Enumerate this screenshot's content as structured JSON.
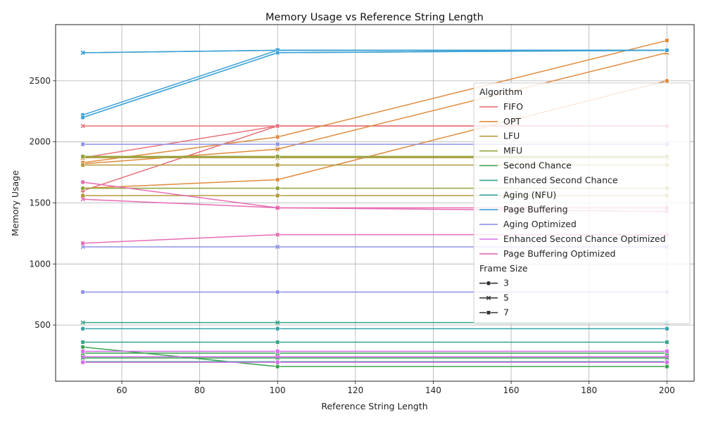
{
  "chart_data": {
    "type": "line",
    "title": "Memory Usage vs Reference String Length",
    "xlabel": "Reference String Length",
    "ylabel": "Memory Usage",
    "xlim": [
      43,
      207
    ],
    "ylim": [
      40,
      2960
    ],
    "xticks": [
      60,
      80,
      100,
      120,
      140,
      160,
      180,
      200
    ],
    "yticks": [
      500,
      1000,
      1500,
      2000,
      2500
    ],
    "grid": true,
    "legend_position": "right",
    "x": [
      50,
      100,
      200
    ],
    "hue_title": "Algorithm",
    "style_title": "Frame Size",
    "algorithms": [
      {
        "name": "FIFO",
        "color": "#e8717a"
      },
      {
        "name": "OPT",
        "color": "#e08a3c"
      },
      {
        "name": "LFU",
        "color": "#b49a3b"
      },
      {
        "name": "MFU",
        "color": "#8ea43a"
      },
      {
        "name": "Second Chance",
        "color": "#3aa650"
      },
      {
        "name": "Enhanced Second Chance",
        "color": "#35a48c"
      },
      {
        "name": "Aging (NFU)",
        "color": "#36a3ac"
      },
      {
        "name": "Page Buffering",
        "color": "#3aa0d6"
      },
      {
        "name": "Aging Optimized",
        "color": "#8f92e8"
      },
      {
        "name": "Enhanced Second Chance Optimized",
        "color": "#d46ee8"
      },
      {
        "name": "Page Buffering Optimized",
        "color": "#e66cb4"
      }
    ],
    "frame_sizes": [
      {
        "label": "3",
        "marker": "circle"
      },
      {
        "label": "5",
        "marker": "x"
      },
      {
        "label": "7",
        "marker": "square"
      }
    ],
    "series": [
      {
        "algorithm": "FIFO",
        "frame": "3",
        "values": [
          1600,
          2130,
          2130
        ]
      },
      {
        "algorithm": "FIFO",
        "frame": "5",
        "values": [
          2130,
          2130,
          2130
        ]
      },
      {
        "algorithm": "FIFO",
        "frame": "7",
        "values": [
          1870,
          2130,
          2130
        ]
      },
      {
        "algorithm": "OPT",
        "frame": "3",
        "values": [
          1620,
          1690,
          2500
        ]
      },
      {
        "algorithm": "OPT",
        "frame": "5",
        "values": [
          1820,
          1940,
          2730
        ]
      },
      {
        "algorithm": "OPT",
        "frame": "7",
        "values": [
          1830,
          2040,
          2830
        ]
      },
      {
        "algorithm": "LFU",
        "frame": "3",
        "values": [
          1560,
          1560,
          1560
        ]
      },
      {
        "algorithm": "LFU",
        "frame": "5",
        "values": [
          1870,
          1870,
          1870
        ]
      },
      {
        "algorithm": "LFU",
        "frame": "7",
        "values": [
          1810,
          1810,
          1810
        ]
      },
      {
        "algorithm": "MFU",
        "frame": "3",
        "values": [
          1620,
          1620,
          1620
        ]
      },
      {
        "algorithm": "MFU",
        "frame": "5",
        "values": [
          1880,
          1880,
          1880
        ]
      },
      {
        "algorithm": "MFU",
        "frame": "7",
        "values": [
          1880,
          1880,
          1880
        ]
      },
      {
        "algorithm": "Second Chance",
        "frame": "3",
        "values": [
          320,
          160,
          160
        ]
      },
      {
        "algorithm": "Second Chance",
        "frame": "5",
        "values": [
          230,
          230,
          230
        ]
      },
      {
        "algorithm": "Second Chance",
        "frame": "7",
        "values": [
          270,
          270,
          270
        ]
      },
      {
        "algorithm": "Enhanced Second Chance",
        "frame": "3",
        "values": [
          200,
          200,
          200
        ]
      },
      {
        "algorithm": "Enhanced Second Chance",
        "frame": "5",
        "values": [
          520,
          520,
          520
        ]
      },
      {
        "algorithm": "Enhanced Second Chance",
        "frame": "7",
        "values": [
          360,
          360,
          360
        ]
      },
      {
        "algorithm": "Aging (NFU)",
        "frame": "3",
        "values": [
          470,
          470,
          470
        ]
      },
      {
        "algorithm": "Aging (NFU)",
        "frame": "5",
        "values": [
          2730,
          2750,
          2750
        ]
      },
      {
        "algorithm": "Aging (NFU)",
        "frame": "7",
        "values": [
          2200,
          2730,
          2750
        ]
      },
      {
        "algorithm": "Page Buffering",
        "frame": "3",
        "values": [
          2220,
          2750,
          2750
        ]
      },
      {
        "algorithm": "Page Buffering",
        "frame": "5",
        "values": [
          2730,
          2750,
          2750
        ]
      },
      {
        "algorithm": "Page Buffering",
        "frame": "7",
        "values": [
          2200,
          2730,
          2750
        ]
      },
      {
        "algorithm": "Aging Optimized",
        "frame": "3",
        "values": [
          770,
          770,
          770
        ]
      },
      {
        "algorithm": "Aging Optimized",
        "frame": "5",
        "values": [
          1140,
          1140,
          1140
        ]
      },
      {
        "algorithm": "Aging Optimized",
        "frame": "7",
        "values": [
          1980,
          1980,
          1980
        ]
      },
      {
        "algorithm": "Enhanced Second Chance Optimized",
        "frame": "3",
        "values": [
          195,
          195,
          195
        ]
      },
      {
        "algorithm": "Enhanced Second Chance Optimized",
        "frame": "5",
        "values": [
          240,
          240,
          240
        ]
      },
      {
        "algorithm": "Enhanced Second Chance Optimized",
        "frame": "7",
        "values": [
          285,
          285,
          285
        ]
      },
      {
        "algorithm": "Page Buffering Optimized",
        "frame": "3",
        "values": [
          1670,
          1460,
          1460
        ]
      },
      {
        "algorithm": "Page Buffering Optimized",
        "frame": "5",
        "values": [
          1530,
          1460,
          1430
        ]
      },
      {
        "algorithm": "Page Buffering Optimized",
        "frame": "7",
        "values": [
          1170,
          1240,
          1240
        ]
      }
    ]
  }
}
